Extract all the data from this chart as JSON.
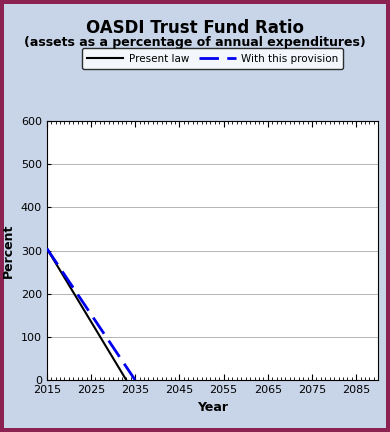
{
  "title": "OASDI Trust Fund Ratio",
  "subtitle": "(assets as a percentage of annual expenditures)",
  "xlabel": "Year",
  "ylabel": "Percent",
  "background_outer": "#8b2252",
  "background_inner": "#c8d4e8",
  "plot_bg": "#ffffff",
  "xlim": [
    2015,
    2090
  ],
  "ylim": [
    0,
    600
  ],
  "xticks": [
    2015,
    2025,
    2035,
    2045,
    2055,
    2065,
    2075,
    2085
  ],
  "yticks": [
    0,
    100,
    200,
    300,
    400,
    500,
    600
  ],
  "present_law": {
    "x": [
      2015,
      2033
    ],
    "y": [
      305,
      0
    ],
    "color": "#000000",
    "linewidth": 1.5,
    "linestyle": "solid",
    "label": "Present law"
  },
  "provision": {
    "x": [
      2015,
      2035
    ],
    "y": [
      305,
      0
    ],
    "color": "#0000ee",
    "linewidth": 2.0,
    "linestyle": "dashed",
    "label": "With this provision"
  },
  "legend_box_color": "#ffffff",
  "title_fontsize": 12,
  "subtitle_fontsize": 9,
  "axis_label_fontsize": 9,
  "tick_fontsize": 8
}
